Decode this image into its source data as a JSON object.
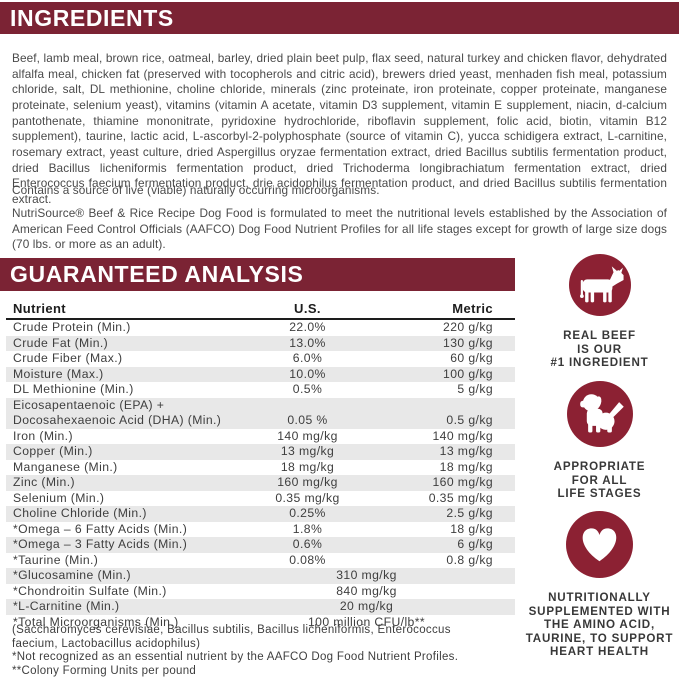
{
  "colors": {
    "header_bar": "#7b2334",
    "badge_circle": "#8c2133",
    "row_stripe": "#e8e8e8",
    "body_text": "#4a4a4a"
  },
  "ingredients": {
    "title": "INGREDIENTS",
    "body": "Beef, lamb meal, brown rice, oatmeal, barley, dried plain beet pulp, flax seed, natural turkey and chicken flavor, dehydrated alfalfa meal, chicken fat (preserved with tocopherols and citric acid), brewers dried yeast, menhaden fish meal, potassium chloride, salt, DL methionine, choline chloride, minerals (zinc proteinate, iron proteinate, copper proteinate, manganese proteinate, selenium yeast), vitamins (vitamin A acetate, vitamin D3 supplement, vitamin E supplement, niacin, d-calcium pantothenate, thiamine mononitrate, pyridoxine hydrochloride, riboflavin supplement, folic acid, biotin, vitamin B12 supplement), taurine, lactic acid, L-ascorbyl-2-polyphosphate (source of vitamin C), yucca schidigera extract, L-carnitine, rosemary extract, yeast culture, dried Aspergillus oryzae fermentation extract, dried Bacillus subtilis fermentation product, dried Bacillus licheniformis fermentation product, dried Trichoderma longibrachiatum fermentation extract, dried Enterococcus faecium fermentation product, drie acidophilus fermentation product, and dried Bacillus subtilis fermentation extract.",
    "contains": "Contains a source of live (viable) naturally occurring microorganisms.",
    "aafco": "NutriSource® Beef & Rice Recipe Dog Food is formulated to meet the nutritional levels established by the Association of American Feed Control Officials (AAFCO) Dog Food Nutrient Profiles for all life stages except for growth of large size dogs (70 lbs. or more as an adult)."
  },
  "analysis": {
    "title": "GUARANTEED ANALYSIS",
    "columns": [
      "Nutrient",
      "U.S.",
      "Metric"
    ],
    "rows": [
      {
        "nutrient": "Crude Protein (Min.)",
        "us": "22.0%",
        "metric": "220 g/kg"
      },
      {
        "nutrient": "Crude Fat (Min.)",
        "us": "13.0%",
        "metric": "130 g/kg"
      },
      {
        "nutrient": "Crude Fiber (Max.)",
        "us": "6.0%",
        "metric": "60 g/kg"
      },
      {
        "nutrient": "Moisture (Max.)",
        "us": "10.0%",
        "metric": "100 g/kg"
      },
      {
        "nutrient": "DL Methionine (Min.)",
        "us": "0.5%",
        "metric": "5 g/kg"
      },
      {
        "nutrient": "Eicosapentaenoic (EPA) +\nDocosahexaenoic Acid (DHA) (Min.)",
        "us": "0.05 %",
        "metric": "0.5 g/kg"
      },
      {
        "nutrient": "Iron (Min.)",
        "us": "140 mg/kg",
        "metric": "140 mg/kg"
      },
      {
        "nutrient": "Copper (Min.)",
        "us": "13 mg/kg",
        "metric": "13 mg/kg"
      },
      {
        "nutrient": "Manganese (Min.)",
        "us": "18 mg/kg",
        "metric": "18 mg/kg"
      },
      {
        "nutrient": "Zinc (Min.)",
        "us": "160 mg/kg",
        "metric": "160 mg/kg"
      },
      {
        "nutrient": "Selenium (Min.)",
        "us": "0.35 mg/kg",
        "metric": "0.35 mg/kg"
      },
      {
        "nutrient": "Choline Chloride (Min.)",
        "us": "0.25%",
        "metric": "2.5 g/kg"
      },
      {
        "nutrient": "*Omega – 6 Fatty Acids (Min.)",
        "us": "1.8%",
        "metric": "18 g/kg"
      },
      {
        "nutrient": "*Omega – 3 Fatty Acids (Min.)",
        "us": "0.6%",
        "metric": "6 g/kg"
      },
      {
        "nutrient": "*Taurine (Min.)",
        "us": "0.08%",
        "metric": "0.8 g/kg"
      },
      {
        "nutrient": "*Glucosamine (Min.)",
        "value": "310 mg/kg"
      },
      {
        "nutrient": "*Chondroitin Sulfate (Min.)",
        "value": "840 mg/kg"
      },
      {
        "nutrient": "*L-Carnitine (Min.)",
        "value": "20 mg/kg"
      },
      {
        "nutrient": "*Total Microorganisms (Min.)",
        "value": "100 million CFU/lb**"
      }
    ],
    "footnotes": [
      "(Saccharomyces cerevisiae, Bacillus subtilis, Bacillus licheniformis, Enterococcus faecium, Lactobacillus acidophilus)",
      "*Not recognized as an essential nutrient by the AAFCO Dog Food Nutrient Profiles.",
      "**Colony Forming Units per pound"
    ]
  },
  "badges": [
    {
      "icon": "cow-icon",
      "caption": "REAL BEEF\nIS OUR\n#1 INGREDIENT"
    },
    {
      "icon": "puppy-icon",
      "caption": "APPROPRIATE\nFOR ALL\nLIFE STAGES"
    },
    {
      "icon": "heart-icon",
      "caption": "NUTRITIONALLY\nSUPPLEMENTED WITH\nTHE AMINO ACID,\nTAURINE, TO SUPPORT\nHEART HEALTH"
    }
  ]
}
